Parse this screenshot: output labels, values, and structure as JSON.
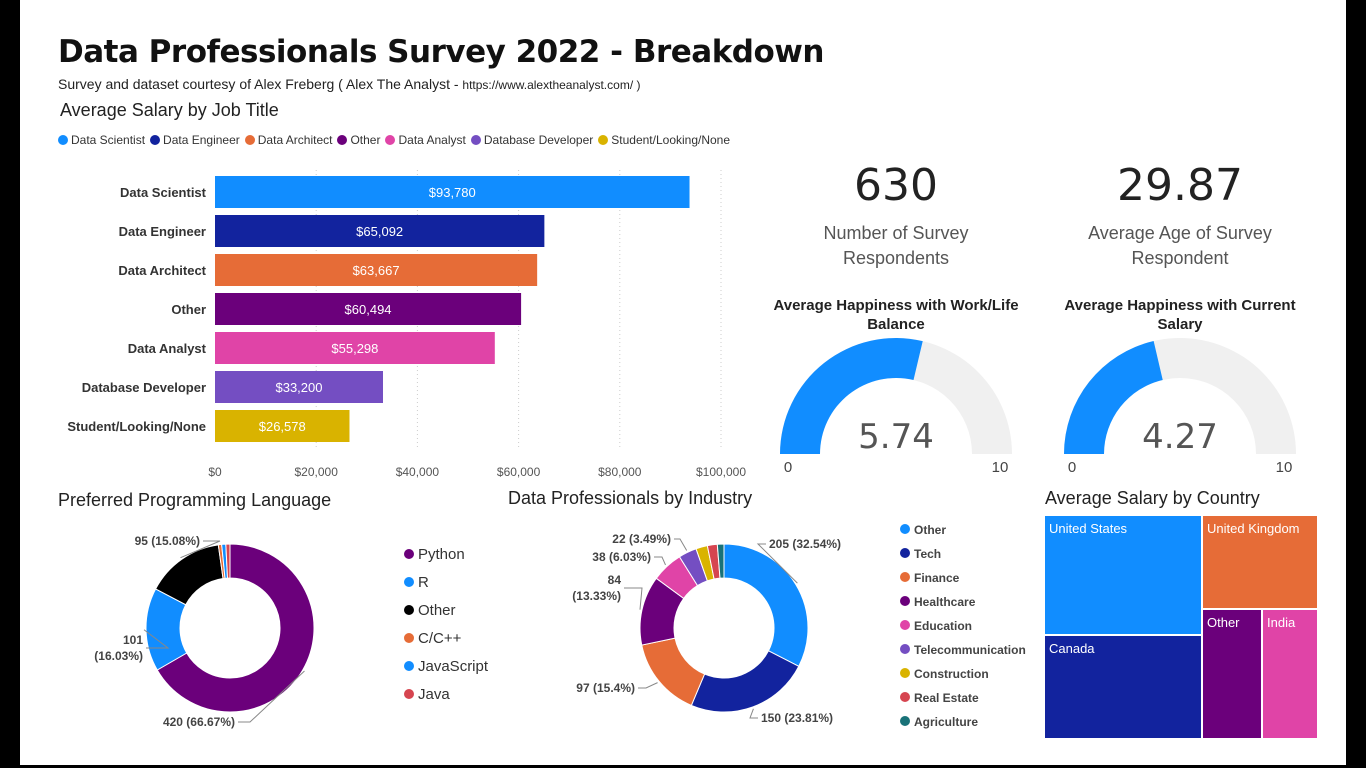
{
  "header": {
    "title": "Data Professionals Survey 2022 - Breakdown",
    "subtitle": "Survey and dataset courtesy of Alex Freberg ( Alex The Analyst - ",
    "subtitle_url": "https://www.alextheanalyst.com/ )"
  },
  "colors": {
    "blue": "#118DFF",
    "navy": "#12239E",
    "orange": "#E66C37",
    "purple": "#6B007B",
    "pink": "#E044A7",
    "violet": "#744EC2",
    "gold": "#D9B300",
    "red": "#D64550",
    "teal": "#197278",
    "black": "#000000",
    "gauge_bg": "#F0F0F0"
  },
  "chart_data": [
    {
      "type": "bar",
      "orientation": "horizontal",
      "title": "Average Salary by Job Title",
      "legend": [
        "Data Scientist",
        "Data Engineer",
        "Data Architect",
        "Other",
        "Data Analyst",
        "Database Developer",
        "Student/Looking/None"
      ],
      "categories": [
        "Data Scientist",
        "Data Engineer",
        "Data Architect",
        "Other",
        "Data Analyst",
        "Database Developer",
        "Student/Looking/None"
      ],
      "values": [
        93780,
        65092,
        63667,
        60494,
        55298,
        33200,
        26578
      ],
      "data_labels": [
        "$93,780",
        "$65,092",
        "$63,667",
        "$60,494",
        "$55,298",
        "$33,200",
        "$26,578"
      ],
      "xlim": [
        0,
        100000
      ],
      "xticks": [
        0,
        20000,
        40000,
        60000,
        80000,
        100000
      ],
      "xtick_labels": [
        "$0",
        "$20,000",
        "$40,000",
        "$60,000",
        "$80,000",
        "$100,000"
      ],
      "grid": true
    },
    {
      "type": "pie",
      "variant": "donut",
      "title": "Preferred Programming Language",
      "labels": [
        "Python",
        "R",
        "Other",
        "C/C++",
        "JavaScript",
        "Java"
      ],
      "values": [
        420,
        101,
        95,
        4,
        5,
        5
      ],
      "data_labels": [
        "420 (66.67%)",
        "101\n(16.03%)",
        "95 (15.08%)",
        "",
        "",
        ""
      ],
      "legend_placement": "right"
    },
    {
      "type": "pie",
      "variant": "donut",
      "title": "Data Professionals by Industry",
      "labels": [
        "Other",
        "Tech",
        "Finance",
        "Healthcare",
        "Education",
        "Telecommunication",
        "Construction",
        "Real Estate",
        "Agriculture"
      ],
      "values": [
        205,
        150,
        97,
        84,
        38,
        22,
        14,
        12,
        8
      ],
      "data_labels": [
        "205 (32.54%)",
        "150 (23.81%)",
        "97 (15.4%)",
        "84\n(13.33%)",
        "38 (6.03%)",
        "22 (3.49%)",
        "",
        "",
        ""
      ],
      "legend_placement": "right"
    },
    {
      "type": "treemap",
      "title": "Average Salary by Country",
      "labels": [
        "United States",
        "United Kingdom",
        "Canada",
        "Other",
        "India"
      ]
    }
  ],
  "kpis": [
    {
      "value": "630",
      "label": "Number of Survey Respondents"
    },
    {
      "value": "29.87",
      "label": "Average Age of Survey Respondent"
    }
  ],
  "gauges": [
    {
      "title": "Average Happiness with Work/Life Balance",
      "value": 5.74,
      "value_label": "5.74",
      "min_label": "0",
      "max_label": "10",
      "min": 0,
      "max": 10
    },
    {
      "title": "Average Happiness with Current Salary",
      "value": 4.27,
      "value_label": "4.27",
      "min_label": "0",
      "max_label": "10",
      "min": 0,
      "max": 10
    }
  ]
}
